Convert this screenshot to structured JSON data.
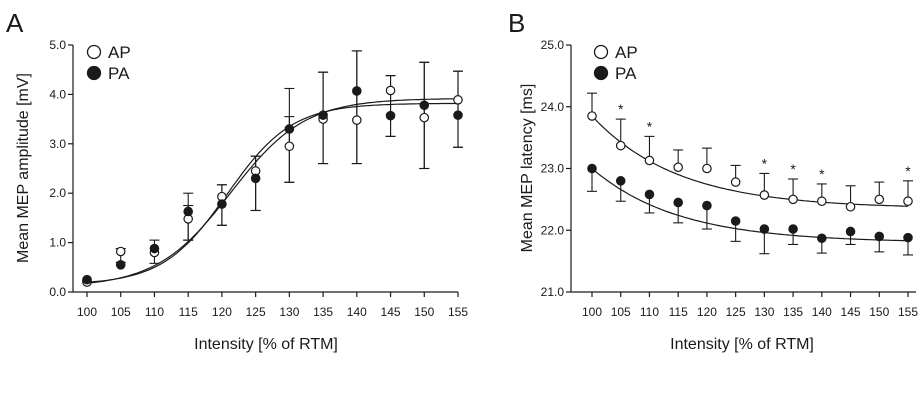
{
  "chart_data": [
    {
      "panel": "A",
      "type": "scatter",
      "xlabel": "Intensity [% of RTM]",
      "ylabel": "Mean MEP amplitude [mV]",
      "xlim": [
        100,
        155
      ],
      "ylim": [
        0,
        5
      ],
      "x_ticks": [
        "100",
        "105",
        "110",
        "115",
        "120",
        "125",
        "130",
        "135",
        "140",
        "145",
        "150",
        "155"
      ],
      "y_ticks": [
        "0.0",
        "1.0",
        "2.0",
        "3.0",
        "4.0",
        "5.0"
      ],
      "x": [
        100,
        105,
        110,
        115,
        120,
        125,
        130,
        135,
        140,
        145,
        150,
        155
      ],
      "series": [
        {
          "name": "AP",
          "marker": "open-circle",
          "values": [
            0.2,
            0.82,
            0.8,
            1.48,
            1.93,
            2.45,
            2.95,
            3.5,
            3.48,
            4.08,
            3.53,
            3.89
          ],
          "error_up": [
            0.2,
            0.88,
            1.05,
            1.75,
            2.17,
            2.75,
            3.55,
            4.45,
            4.88,
            4.38,
            4.65,
            4.47
          ],
          "error_down": [
            0.18,
            0.6,
            0.58,
            1.05,
            1.35,
            1.65,
            2.22,
            2.6,
            2.6,
            3.15,
            2.5,
            2.93
          ],
          "fit": {
            "min": 0.1,
            "max": 3.92,
            "x50": 121.3,
            "slope": 5.5
          }
        },
        {
          "name": "PA",
          "marker": "filled-circle",
          "values": [
            0.25,
            0.55,
            0.88,
            1.63,
            1.78,
            2.3,
            3.3,
            3.58,
            4.07,
            3.57,
            3.78,
            3.58
          ],
          "error_up": [
            0.25,
            0.55,
            0.88,
            2.0,
            2.17,
            2.75,
            4.12,
            4.45,
            4.88,
            4.38,
            4.65,
            4.47
          ],
          "error_down": [
            0.22,
            0.55,
            0.88,
            1.05,
            1.35,
            1.65,
            2.22,
            2.6,
            2.6,
            3.15,
            2.5,
            2.93
          ],
          "fit": {
            "min": 0.15,
            "max": 3.82,
            "x50": 120.8,
            "slope": 4.8
          }
        }
      ]
    },
    {
      "panel": "B",
      "type": "scatter",
      "xlabel": "Intensity [% of RTM]",
      "ylabel": "Mean MEP latency [ms]",
      "xlim": [
        100,
        155
      ],
      "ylim": [
        21,
        25
      ],
      "x_ticks": [
        "100",
        "105",
        "110",
        "115",
        "120",
        "125",
        "130",
        "135",
        "140",
        "145",
        "150",
        "155"
      ],
      "y_ticks": [
        "21.0",
        "22.0",
        "23.0",
        "24.0",
        "25.0"
      ],
      "x": [
        100,
        105,
        110,
        115,
        120,
        125,
        130,
        135,
        140,
        145,
        150,
        155
      ],
      "significance": {
        "symbol": "*",
        "x": [
          105,
          110,
          130,
          135,
          140,
          155
        ]
      },
      "series": [
        {
          "name": "AP",
          "marker": "open-circle",
          "values": [
            23.85,
            23.37,
            23.13,
            23.02,
            23.0,
            22.78,
            22.57,
            22.5,
            22.47,
            22.38,
            22.5,
            22.47
          ],
          "error_up": [
            24.22,
            23.8,
            23.52,
            23.3,
            23.33,
            23.05,
            22.92,
            22.83,
            22.75,
            22.72,
            22.78,
            22.8
          ],
          "fit": {
            "asymptote": 22.35,
            "amplitude": 1.5,
            "tau": 15
          }
        },
        {
          "name": "PA",
          "marker": "filled-circle",
          "values": [
            23.0,
            22.8,
            22.58,
            22.45,
            22.4,
            22.15,
            22.02,
            22.02,
            21.87,
            21.98,
            21.9,
            21.88
          ],
          "error_down": [
            22.63,
            22.47,
            22.28,
            22.12,
            22.02,
            21.82,
            21.62,
            21.77,
            21.63,
            21.77,
            21.65,
            21.6
          ],
          "fit": {
            "asymptote": 21.8,
            "amplitude": 1.2,
            "tau": 15
          }
        }
      ]
    }
  ],
  "legend": [
    {
      "label": "AP",
      "marker": "open-circle"
    },
    {
      "label": "PA",
      "marker": "filled-circle"
    }
  ],
  "colors": {
    "ink": "#1a1a1a",
    "open_fill": "#ffffff"
  }
}
